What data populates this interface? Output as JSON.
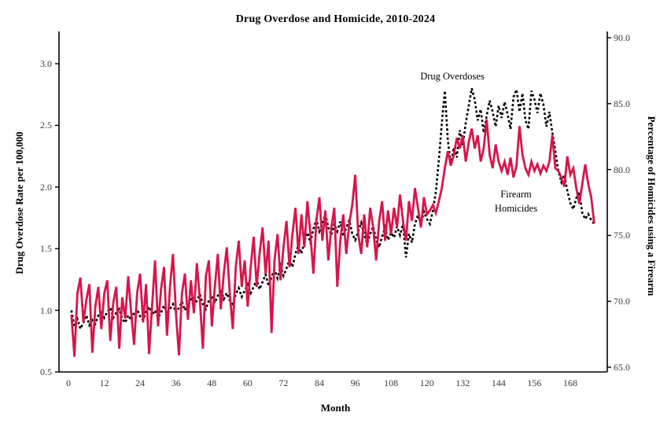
{
  "title": "Drug Overdose and Homicide, 2010-2024",
  "chart_data": {
    "type": "line",
    "title": "Drug Overdose and Homicide, 2010-2024",
    "xlabel": "Month",
    "x_start_month": 1,
    "x_ticks": [
      0,
      12,
      24,
      36,
      48,
      60,
      72,
      84,
      96,
      108,
      120,
      132,
      144,
      156,
      168
    ],
    "grid": false,
    "legend_position": "inline-annotations",
    "left_axis": {
      "label": "Drug Overdose Rate per 100,000",
      "ylim": [
        0.5,
        3.0
      ],
      "ticks": [
        3.0,
        2.5,
        2.0,
        1.5,
        1.0,
        0.5
      ]
    },
    "right_axis": {
      "label": "Percentage of Homicides using a Firearm",
      "ylim": [
        65.0,
        90.0
      ],
      "ticks": [
        90.0,
        85.0,
        80.0,
        75.0,
        70.0,
        65.0
      ]
    },
    "series": [
      {
        "name": "Drug Overdoses",
        "axis": "left",
        "line_style": "dotted",
        "color": "#000000",
        "annotation_label": "Drug Overdoses",
        "values": [
          1.0,
          0.87,
          0.93,
          0.85,
          0.9,
          0.96,
          0.88,
          0.92,
          0.89,
          0.96,
          1.0,
          0.94,
          0.99,
          1.02,
          0.94,
          0.98,
          1.01,
          0.93,
          0.9,
          0.96,
          0.92,
          0.98,
          1.01,
          0.95,
          0.92,
          0.99,
          1.03,
          0.96,
          1.0,
          0.94,
          0.98,
          1.04,
          0.97,
          1.01,
          1.05,
          0.98,
          1.02,
          1.07,
          1.0,
          1.05,
          1.1,
          1.03,
          1.08,
          1.13,
          1.05,
          1.01,
          1.08,
          1.12,
          1.06,
          1.12,
          1.17,
          1.09,
          1.14,
          1.08,
          1.05,
          1.13,
          1.18,
          1.11,
          1.16,
          1.21,
          1.14,
          1.19,
          1.25,
          1.17,
          1.23,
          1.29,
          1.2,
          1.27,
          1.33,
          1.26,
          1.36,
          1.28,
          1.34,
          1.41,
          1.35,
          1.46,
          1.53,
          1.46,
          1.56,
          1.63,
          1.55,
          1.66,
          1.74,
          1.64,
          1.7,
          1.78,
          1.67,
          1.61,
          1.7,
          1.64,
          1.72,
          1.6,
          1.67,
          1.73,
          1.62,
          1.57,
          1.64,
          1.71,
          1.61,
          1.54,
          1.62,
          1.68,
          1.57,
          1.51,
          1.6,
          1.67,
          1.57,
          1.63,
          1.59,
          1.68,
          1.61,
          1.7,
          1.43,
          1.62,
          1.55,
          1.7,
          1.77,
          1.7,
          1.8,
          1.74,
          1.7,
          1.81,
          1.96,
          2.22,
          2.52,
          2.78,
          2.38,
          2.18,
          2.32,
          2.24,
          2.46,
          2.34,
          2.52,
          2.66,
          2.8,
          2.71,
          2.54,
          2.63,
          2.44,
          2.58,
          2.7,
          2.61,
          2.49,
          2.66,
          2.56,
          2.69,
          2.59,
          2.47,
          2.73,
          2.79,
          2.61,
          2.76,
          2.54,
          2.47,
          2.78,
          2.71,
          2.6,
          2.76,
          2.67,
          2.49,
          2.61,
          2.44,
          2.29,
          2.13,
          2.04,
          2.1,
          1.97,
          1.87,
          1.82,
          1.91,
          1.96,
          1.79,
          1.74,
          1.78,
          1.73,
          1.7
        ]
      },
      {
        "name": "Firearm Homicides",
        "axis": "right",
        "line_style": "solid",
        "color": "#d6164b",
        "annotation_label": "Firearm Homicides",
        "annotation_line1": "Firearm",
        "annotation_line2": "Homicides",
        "values": [
          69.0,
          65.8,
          70.6,
          71.8,
          68.4,
          70.1,
          71.3,
          66.1,
          69.6,
          71.1,
          67.9,
          70.6,
          71.6,
          67.0,
          69.9,
          71.1,
          66.4,
          70.3,
          68.7,
          71.9,
          69.1,
          66.7,
          70.6,
          72.1,
          68.4,
          71.3,
          66.0,
          69.6,
          73.1,
          68.1,
          70.9,
          72.6,
          67.4,
          71.1,
          73.6,
          69.1,
          65.9,
          70.6,
          72.1,
          68.6,
          71.6,
          69.1,
          72.9,
          70.1,
          66.4,
          71.9,
          73.1,
          68.1,
          71.1,
          73.6,
          69.4,
          72.1,
          74.1,
          70.6,
          67.9,
          72.6,
          74.6,
          71.1,
          73.1,
          69.6,
          72.6,
          74.9,
          71.1,
          73.6,
          75.6,
          72.1,
          74.6,
          67.6,
          73.1,
          75.1,
          71.6,
          74.1,
          76.1,
          72.6,
          75.1,
          77.1,
          73.6,
          76.6,
          74.1,
          77.6,
          75.1,
          72.1,
          76.1,
          77.9,
          74.6,
          76.9,
          73.1,
          75.6,
          77.1,
          71.1,
          74.6,
          76.6,
          73.6,
          75.9,
          77.3,
          79.6,
          75.1,
          73.6,
          76.6,
          74.1,
          77.1,
          75.6,
          73.1,
          76.1,
          77.6,
          74.6,
          76.9,
          75.1,
          77.1,
          75.6,
          78.1,
          76.1,
          74.6,
          77.6,
          76.1,
          78.6,
          77.1,
          75.6,
          77.9,
          76.6,
          76.9,
          77.3,
          76.7,
          77.6,
          78.6,
          80.1,
          81.4,
          80.3,
          81.1,
          82.4,
          81.6,
          82.6,
          80.6,
          82.1,
          83.1,
          81.6,
          82.6,
          80.6,
          81.6,
          83.8,
          81.1,
          80.1,
          81.9,
          80.6,
          79.9,
          80.6,
          79.6,
          80.9,
          79.4,
          80.3,
          83.3,
          81.1,
          80.1,
          79.6,
          80.6,
          79.9,
          80.4,
          79.7,
          80.3,
          79.9,
          80.6,
          82.6,
          80.1,
          79.9,
          79.4,
          78.7,
          81.0,
          79.6,
          80.1,
          78.6,
          77.4,
          78.9,
          80.4,
          78.9,
          77.9,
          75.9
        ]
      }
    ]
  }
}
